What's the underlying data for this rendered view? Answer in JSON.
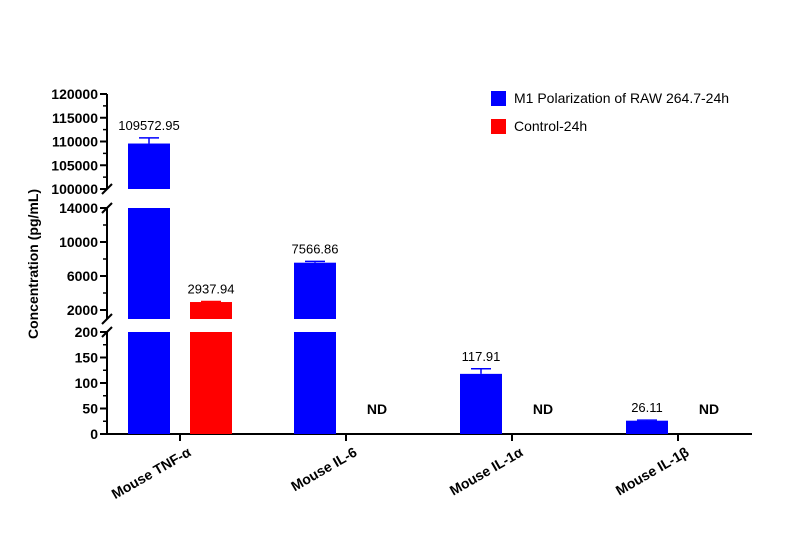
{
  "chart_data": {
    "type": "bar",
    "ylabel": "Concentration (pg/mL)",
    "categories": [
      "Mouse TNF-α",
      "Mouse IL-6",
      "Mouse IL-1α",
      "Mouse IL-1β"
    ],
    "series": [
      {
        "name": "M1 Polarization of RAW 264.7-24h",
        "color": "#0000ff",
        "values": [
          109572.95,
          7566.86,
          117.91,
          26.11
        ],
        "errors": [
          1200,
          150,
          10,
          1
        ]
      },
      {
        "name": "Control-24h",
        "color": "#ff0000",
        "values": [
          2937.94,
          null,
          null,
          null
        ],
        "errors": [
          60,
          null,
          null,
          null
        ]
      }
    ],
    "data_labels": [
      [
        "109572.95",
        "7566.86",
        "117.91",
        "26.11"
      ],
      [
        "2937.94",
        "ND",
        "ND",
        "ND"
      ]
    ],
    "y_axis_segments": [
      {
        "range": [
          0,
          200
        ],
        "ticks": [
          "0",
          "50",
          "100",
          "150",
          "200"
        ]
      },
      {
        "range": [
          1000,
          14000
        ],
        "ticks": [
          "2000",
          "6000",
          "10000",
          "14000"
        ]
      },
      {
        "range": [
          100000,
          120000
        ],
        "ticks": [
          "100000",
          "105000",
          "110000",
          "115000",
          "120000"
        ]
      }
    ],
    "axis_breaks": true,
    "legend_position": "top-right",
    "grid": false
  }
}
